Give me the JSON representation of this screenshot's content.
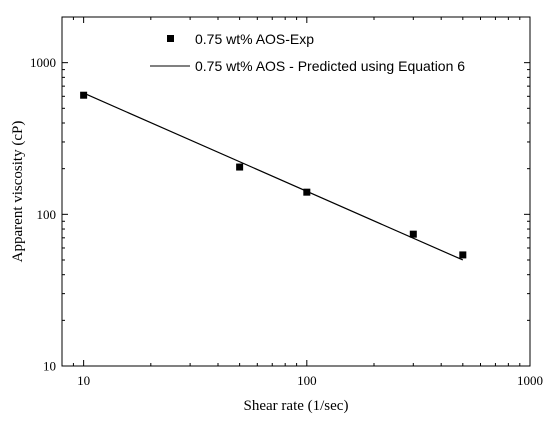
{
  "chart_data": {
    "type": "scatter",
    "xlabel": "Shear rate (1/sec)",
    "ylabel": "Apparent viscosity (cP)",
    "x_scale": "log",
    "y_scale": "log",
    "xlim": [
      8,
      1000
    ],
    "ylim": [
      10,
      2000
    ],
    "x_ticks": [
      {
        "value": 10,
        "label": "10"
      },
      {
        "value": 100,
        "label": "100"
      },
      {
        "value": 1000,
        "label": "1000"
      }
    ],
    "y_ticks": [
      {
        "value": 10,
        "label": "10"
      },
      {
        "value": 100,
        "label": "100"
      },
      {
        "value": 1000,
        "label": "1000"
      }
    ],
    "legend_position": "top-right",
    "series": [
      {
        "name": "0.75 wt% AOS-Exp",
        "style": "markers",
        "marker": "square",
        "color": "#000000",
        "x": [
          10,
          50,
          100,
          300,
          500
        ],
        "y": [
          610,
          205,
          140,
          74,
          54
        ]
      },
      {
        "name": "0.75 wt% AOS - Predicted using Equation 6",
        "style": "line",
        "color": "#000000",
        "x": [
          10,
          500
        ],
        "y": [
          630,
          50
        ]
      }
    ]
  }
}
